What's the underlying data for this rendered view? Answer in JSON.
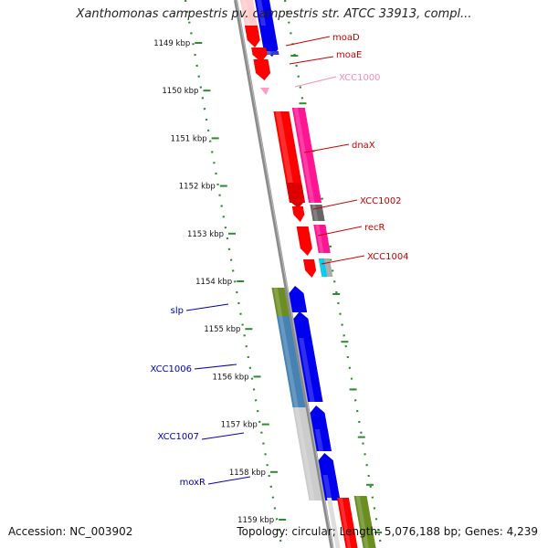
{
  "title": "Xanthomonas campestris pv. campestris str. ATCC 33913, compl...",
  "footer": {
    "accession": "Accession: NC_003902",
    "summary": "Topology: circular; Length: 5,076,188 bp; Genes: 4,239"
  },
  "scale": {
    "unit": "kbp",
    "ticks": [
      {
        "kbp": 1149,
        "label": "1149 kbp"
      },
      {
        "kbp": 1150,
        "label": "1150 kbp"
      },
      {
        "kbp": 1151,
        "label": "1151 kbp"
      },
      {
        "kbp": 1152,
        "label": "1152 kbp"
      },
      {
        "kbp": 1153,
        "label": "1153 kbp"
      },
      {
        "kbp": 1154,
        "label": "1154 kbp"
      },
      {
        "kbp": 1155,
        "label": "1155 kbp"
      },
      {
        "kbp": 1156,
        "label": "1156 kbp"
      },
      {
        "kbp": 1157,
        "label": "1157 kbp"
      },
      {
        "kbp": 1158,
        "label": "1158 kbp"
      },
      {
        "kbp": 1159,
        "label": "1159 kbp"
      }
    ]
  },
  "colors": {
    "backbone": "#8a8a8a",
    "scale_green": "#2e8b2e",
    "forward_red": "#ff0000",
    "blue": "#0000ee",
    "pink": "#ff1493",
    "light_pink": "#ff99cc",
    "grey": "#666666",
    "cyan": "#00ccee",
    "olive": "#6b8e23",
    "steel": "#4682b4",
    "light_grey": "#cccccc"
  },
  "genes": [
    {
      "name": "moaD",
      "color": "#ff0000",
      "label_color": "#cc0000",
      "side": "right"
    },
    {
      "name": "moaE",
      "color": "#ff0000",
      "label_color": "#cc0000",
      "side": "right"
    },
    {
      "name": "XCC1000",
      "color": "#ff99cc",
      "label_color": "#ff88bb",
      "side": "right"
    },
    {
      "name": "dnaX",
      "color": "#ff0000",
      "label_color": "#cc0000",
      "side": "right"
    },
    {
      "name": "XCC1002",
      "color": "#ff0000",
      "label_color": "#cc0000",
      "side": "right"
    },
    {
      "name": "recR",
      "color": "#ff0000",
      "label_color": "#cc0000",
      "side": "right"
    },
    {
      "name": "XCC1004",
      "color": "#ff0000",
      "label_color": "#cc0000",
      "side": "right"
    },
    {
      "name": "slp",
      "color": "#0000ee",
      "label_color": "#0000bb",
      "side": "left"
    },
    {
      "name": "XCC1006",
      "color": "#0000ee",
      "label_color": "#0000bb",
      "side": "left"
    },
    {
      "name": "XCC1007",
      "color": "#0000ee",
      "label_color": "#0000bb",
      "side": "left"
    },
    {
      "name": "moxR",
      "color": "#0000ee",
      "label_color": "#0000bb",
      "side": "left"
    }
  ]
}
